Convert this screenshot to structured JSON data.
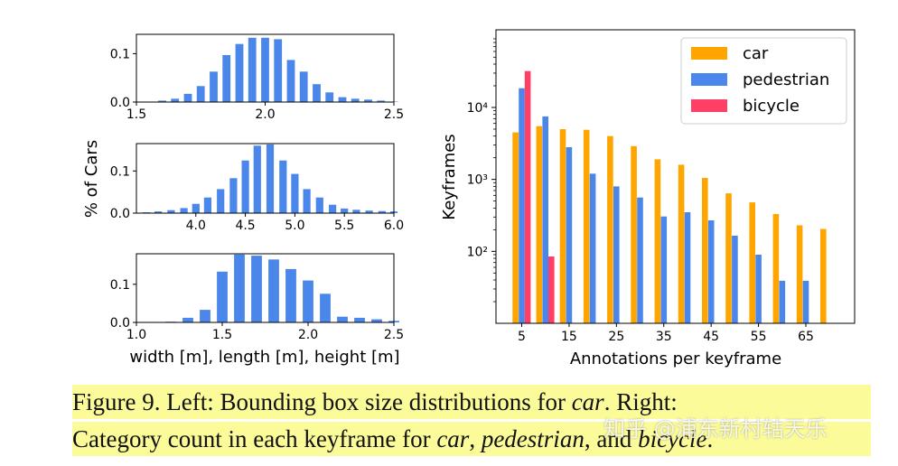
{
  "chart_data": [
    {
      "type": "bar",
      "title": "",
      "ylabel": "% of Cars",
      "xlabel": "",
      "xlim": [
        1.5,
        2.5
      ],
      "ylim": [
        0.0,
        0.14
      ],
      "xticks": [
        "1.5",
        "2.0",
        "2.5"
      ],
      "yticks": [
        "0.0",
        "0.1"
      ],
      "x": [
        1.55,
        1.6,
        1.65,
        1.7,
        1.75,
        1.8,
        1.85,
        1.9,
        1.95,
        2.0,
        2.05,
        2.1,
        2.15,
        2.2,
        2.25,
        2.3,
        2.35,
        2.4,
        2.45,
        2.5
      ],
      "values": [
        0.0,
        0.003,
        0.007,
        0.017,
        0.033,
        0.063,
        0.097,
        0.12,
        0.133,
        0.133,
        0.13,
        0.087,
        0.063,
        0.037,
        0.02,
        0.01,
        0.007,
        0.005,
        0.003,
        0.001
      ]
    },
    {
      "type": "bar",
      "title": "",
      "xlim": [
        3.4,
        6.0
      ],
      "ylim": [
        0.0,
        0.165
      ],
      "xticks": [
        "4.0",
        "4.5",
        "5.0",
        "5.5",
        "6.0"
      ],
      "yticks": [
        "0.0",
        "0.1"
      ],
      "x": [
        3.5,
        3.62,
        3.75,
        3.88,
        4.0,
        4.12,
        4.25,
        4.38,
        4.5,
        4.62,
        4.75,
        4.88,
        5.0,
        5.12,
        5.25,
        5.38,
        5.5,
        5.62,
        5.75,
        5.88,
        6.0
      ],
      "values": [
        0.002,
        0.004,
        0.007,
        0.012,
        0.022,
        0.037,
        0.057,
        0.083,
        0.125,
        0.16,
        0.163,
        0.125,
        0.093,
        0.057,
        0.037,
        0.02,
        0.011,
        0.008,
        0.006,
        0.005,
        0.004
      ]
    },
    {
      "type": "bar",
      "title": "",
      "xlabel": "width [m], length [m], height [m]",
      "xlim": [
        1.0,
        2.5
      ],
      "ylim": [
        0.0,
        0.18
      ],
      "xticks": [
        "1.0",
        "1.5",
        "2.0",
        "2.5"
      ],
      "yticks": [
        "0.0",
        "0.1"
      ],
      "x": [
        1.2,
        1.3,
        1.4,
        1.5,
        1.6,
        1.7,
        1.8,
        1.9,
        2.0,
        2.1,
        2.2,
        2.3,
        2.4,
        2.5
      ],
      "values": [
        0.002,
        0.012,
        0.033,
        0.133,
        0.178,
        0.175,
        0.165,
        0.14,
        0.11,
        0.075,
        0.015,
        0.012,
        0.008,
        0.004
      ]
    },
    {
      "type": "bar",
      "title": "",
      "xlabel": "Annotations per keyframe",
      "ylabel": "Keyframes",
      "yscale": "log",
      "ylim": [
        10,
        120000
      ],
      "xticks": [
        "5",
        "15",
        "25",
        "35",
        "45",
        "55",
        "65"
      ],
      "yticks": [
        "10²",
        "10³",
        "10⁴"
      ],
      "legend_position": "top-right",
      "categories": [
        5,
        10,
        15,
        20,
        25,
        30,
        35,
        40,
        45,
        50,
        55,
        60,
        65,
        70
      ],
      "series": [
        {
          "name": "car",
          "color": "#ffa500",
          "values": [
            4500,
            5500,
            5000,
            4900,
            4000,
            2900,
            1900,
            1600,
            1050,
            640,
            480,
            330,
            230,
            205
          ]
        },
        {
          "name": "pedestrian",
          "color": "#4b87ea",
          "values": [
            18500,
            7500,
            2800,
            1200,
            800,
            560,
            305,
            350,
            270,
            165,
            90,
            39,
            39,
            null
          ]
        },
        {
          "name": "bicycle",
          "color": "#ff3f65",
          "values": [
            32000,
            85,
            null,
            null,
            null,
            null,
            null,
            null,
            null,
            null,
            null,
            null,
            null,
            null
          ]
        }
      ]
    }
  ],
  "colors": {
    "histogram": "#4b87ea",
    "car": "#ffa500",
    "pedestrian": "#4b87ea",
    "bicycle": "#ff3f65"
  },
  "caption": {
    "line1_prefix": "Figure 9. Left: Bounding box size distributions for ",
    "line1_car": "car",
    "line1_suffix": ". Right:",
    "line2_prefix": "Category count in each keyframe for ",
    "line2_car": "car",
    "line2_sep1": ", ",
    "line2_ped": "pedestrian",
    "line2_sep2": ", and ",
    "line2_bike": "bicycle",
    "line2_end": "."
  },
  "watermark": "知乎 @浦东新村轱天乐"
}
